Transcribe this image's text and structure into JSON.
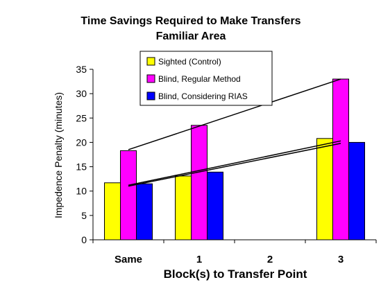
{
  "chart_data": {
    "type": "bar",
    "title": "Time Savings Required to Make Transfers",
    "subtitle": "Familiar Area",
    "xlabel": "Block(s) to Transfer Point",
    "ylabel": "Impedence Penalty (minutes)",
    "categories": [
      "Same",
      "1",
      "2",
      "3"
    ],
    "ylim": [
      0,
      35
    ],
    "yticks": [
      0,
      5,
      10,
      15,
      20,
      25,
      30,
      35
    ],
    "grid": false,
    "legend_position": "top-center",
    "series": [
      {
        "name": "Sighted (Control)",
        "color": "#ffff00",
        "values": [
          11.7,
          13.1,
          null,
          20.8
        ]
      },
      {
        "name": "Blind, Regular Method",
        "color": "#ff00ff",
        "values": [
          18.3,
          23.5,
          null,
          33.0
        ]
      },
      {
        "name": "Blind, Considering RIAS",
        "color": "#0000ff",
        "values": [
          11.5,
          13.9,
          null,
          20.0
        ]
      }
    ],
    "trendlines": [
      {
        "series": "Sighted (Control)",
        "from": [
          0,
          11.2
        ],
        "to": [
          3,
          20.3
        ]
      },
      {
        "series": "Blind, Regular Method",
        "from": [
          0,
          18.5
        ],
        "to": [
          3,
          33.0
        ]
      },
      {
        "series": "Blind, Considering RIAS",
        "from": [
          0,
          11.0
        ],
        "to": [
          3,
          19.8
        ]
      }
    ]
  }
}
